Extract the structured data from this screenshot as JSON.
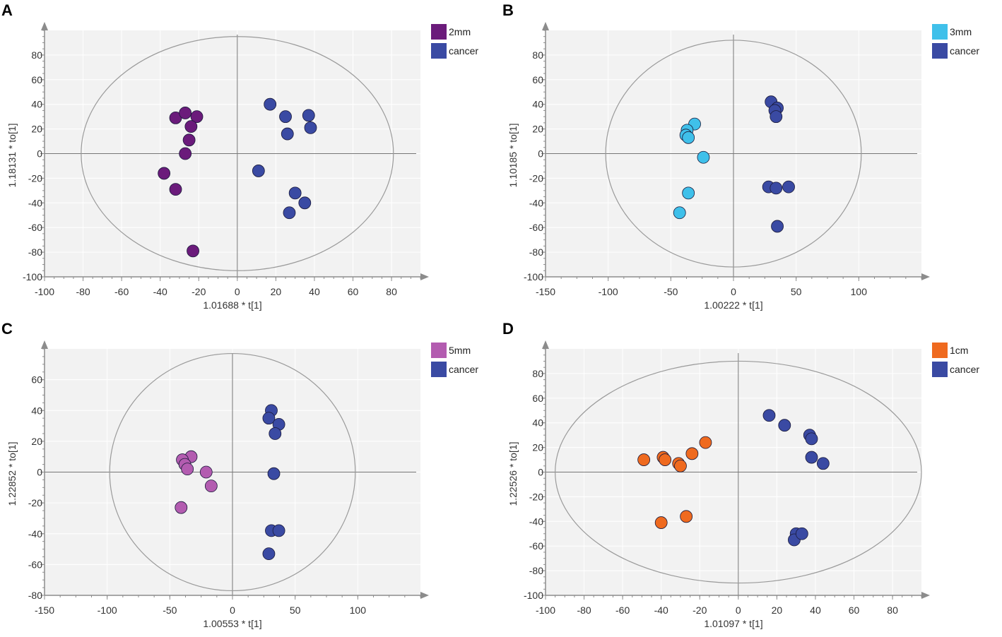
{
  "chart_data": [
    {
      "type": "scatter",
      "panel_label": "A",
      "xlabel": "1.01688 * t[1]",
      "ylabel": "1.18131 * to[1]",
      "xlim": [
        -100,
        95
      ],
      "ylim": [
        -100,
        100
      ],
      "xticks": [
        -100,
        -80,
        -60,
        -40,
        -20,
        0,
        20,
        40,
        60,
        80
      ],
      "yticks": [
        -100,
        -80,
        -60,
        -40,
        -20,
        0,
        20,
        40,
        60,
        80
      ],
      "ellipse": {
        "rx": 81,
        "ry": 95
      },
      "legend_position": "top-right-outside",
      "series": [
        {
          "name": "2mm",
          "color": "#6b1b7b",
          "x": [
            -32,
            -27,
            -21,
            -24,
            -25,
            -27,
            -38,
            -32,
            -23
          ],
          "y": [
            29,
            33,
            30,
            22,
            11,
            0,
            -16,
            -29,
            -79
          ]
        },
        {
          "name": "cancer",
          "color": "#3a4aa3",
          "x": [
            17,
            25,
            37,
            26,
            38,
            11,
            30,
            35,
            27
          ],
          "y": [
            40,
            30,
            31,
            16,
            21,
            -14,
            -32,
            -40,
            -48
          ]
        }
      ]
    },
    {
      "type": "scatter",
      "panel_label": "B",
      "xlabel": "1.00222 * t[1]",
      "ylabel": "1.10185 * to[1]",
      "xlim": [
        -150,
        150
      ],
      "ylim": [
        -100,
        100
      ],
      "xticks": [
        -150,
        -100,
        -50,
        0,
        50,
        100
      ],
      "yticks": [
        -100,
        -80,
        -60,
        -40,
        -20,
        0,
        20,
        40,
        60,
        80
      ],
      "ellipse": {
        "rx": 102,
        "ry": 92
      },
      "legend_position": "top-right-outside",
      "series": [
        {
          "name": "3mm",
          "color": "#3fc0ea",
          "x": [
            -31,
            -37,
            -38,
            -36,
            -24,
            -36,
            -43
          ],
          "y": [
            24,
            19,
            15,
            13,
            -3,
            -32,
            -48
          ]
        },
        {
          "name": "cancer",
          "color": "#3a4aa3",
          "x": [
            30,
            35,
            33,
            34,
            28,
            34,
            44,
            35
          ],
          "y": [
            42,
            37,
            35,
            30,
            -27,
            -28,
            -27,
            -59
          ]
        }
      ]
    },
    {
      "type": "scatter",
      "panel_label": "C",
      "xlabel": "1.00553 * t[1]",
      "ylabel": "1.22852 * to[1]",
      "xlim": [
        -150,
        150
      ],
      "ylim": [
        -80,
        80
      ],
      "xticks": [
        -150,
        -100,
        -50,
        0,
        50,
        100
      ],
      "yticks": [
        -80,
        -60,
        -40,
        -20,
        0,
        20,
        40,
        60
      ],
      "ellipse": {
        "rx": 98,
        "ry": 77
      },
      "legend_position": "top-right-outside",
      "series": [
        {
          "name": "5mm",
          "color": "#b35cb0",
          "x": [
            -33,
            -40,
            -38,
            -36,
            -21,
            -17,
            -41
          ],
          "y": [
            10,
            8,
            5,
            2,
            0,
            -9,
            -23
          ]
        },
        {
          "name": "cancer",
          "color": "#3a4aa3",
          "x": [
            31,
            29,
            37,
            34,
            33,
            31,
            37,
            29
          ],
          "y": [
            40,
            35,
            31,
            25,
            -1,
            -38,
            -38,
            -53
          ]
        }
      ]
    },
    {
      "type": "scatter",
      "panel_label": "D",
      "xlabel": "1.01097 * t[1]",
      "ylabel": "1.22526 * to[1]",
      "xlim": [
        -100,
        95
      ],
      "ylim": [
        -100,
        100
      ],
      "xticks": [
        -100,
        -80,
        -60,
        -40,
        -20,
        0,
        20,
        40,
        60,
        80
      ],
      "yticks": [
        -100,
        -80,
        -60,
        -40,
        -20,
        0,
        20,
        40,
        60,
        80
      ],
      "ellipse": {
        "rx": 95,
        "ry": 90
      },
      "legend_position": "top-right-outside",
      "series": [
        {
          "name": "1cm",
          "color": "#ef6a1f",
          "x": [
            -17,
            -24,
            -39,
            -38,
            -49,
            -31,
            -30,
            -27,
            -40
          ],
          "y": [
            24,
            15,
            12,
            10,
            10,
            7,
            5,
            -36,
            -41
          ]
        },
        {
          "name": "cancer",
          "color": "#3a4aa3",
          "x": [
            16,
            24,
            37,
            38,
            38,
            44,
            30,
            29,
            33
          ],
          "y": [
            46,
            38,
            30,
            27,
            12,
            7,
            -50,
            -55,
            -50
          ]
        }
      ]
    }
  ]
}
